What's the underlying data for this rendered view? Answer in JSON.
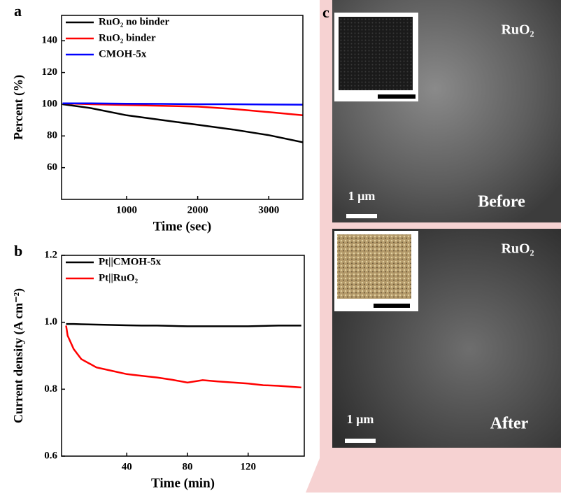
{
  "chart_data": [
    {
      "type": "line",
      "panel_label": "a",
      "x_label": "Time (sec)",
      "y_label": "Percent (%)",
      "x": [
        100,
        500,
        1000,
        1500,
        2000,
        2500,
        3000,
        3480
      ],
      "series": [
        {
          "name": "RuO₂ no binder",
          "color": "#000000",
          "values": [
            100,
            97.5,
            93,
            90,
            87,
            84,
            80.5,
            76
          ]
        },
        {
          "name": "RuO₂ binder",
          "color": "#ff0000",
          "values": [
            100.5,
            100,
            99.5,
            99,
            98.5,
            97,
            95,
            93
          ]
        },
        {
          "name": "CMOH-5x",
          "color": "#0000ff",
          "values": [
            100.5,
            100.5,
            100.3,
            100.2,
            100,
            100,
            99.8,
            99.7
          ]
        }
      ],
      "xlim": [
        85,
        3480
      ],
      "ylim": [
        40,
        156
      ],
      "xticks": [
        1000,
        2000,
        3000
      ],
      "yticks": [
        60,
        80,
        100,
        120,
        140
      ],
      "legend": "upper-left"
    },
    {
      "type": "line",
      "panel_label": "b",
      "x_label": "Time (min)",
      "y_label": "Current density (A cm⁻²)",
      "x": [
        0,
        1,
        5,
        10,
        20,
        30,
        40,
        50,
        60,
        70,
        80,
        90,
        100,
        110,
        120,
        130,
        140,
        155
      ],
      "series": [
        {
          "name": "Pt||CMOH-5x",
          "color": "#000000",
          "values": [
            0.995,
            0.995,
            0.995,
            0.994,
            0.993,
            0.992,
            0.991,
            0.99,
            0.99,
            0.989,
            0.988,
            0.988,
            0.988,
            0.988,
            0.988,
            0.989,
            0.99,
            0.99
          ]
        },
        {
          "name": "Pt||RuO₂",
          "color": "#ff0000",
          "values": [
            0.99,
            0.96,
            0.92,
            0.89,
            0.865,
            0.855,
            0.845,
            0.84,
            0.835,
            0.828,
            0.82,
            0.827,
            0.823,
            0.82,
            0.817,
            0.812,
            0.81,
            0.805
          ]
        }
      ],
      "xlim": [
        -3,
        157
      ],
      "ylim": [
        0.6,
        1.2
      ],
      "xticks": [
        40,
        80,
        120
      ],
      "yticks": [
        0.6,
        0.8,
        {
          "value": 1,
          "label": "1.0"
        },
        1.2
      ],
      "legend": "upper-left"
    }
  ],
  "panel_c": {
    "panel_label": "c",
    "images": [
      {
        "material": "RuO₂",
        "scale": "1 µm",
        "state": "Before"
      },
      {
        "material": "RuO₂",
        "scale": "1 µm",
        "state": "After"
      }
    ]
  }
}
